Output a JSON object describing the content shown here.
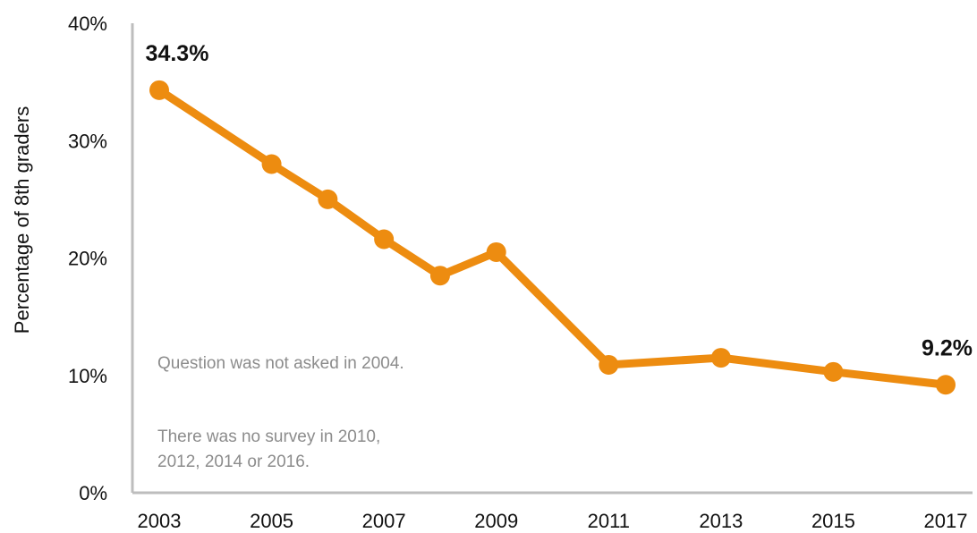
{
  "chart_data": {
    "type": "line",
    "ylabel": "Percentage of 8th graders",
    "xlabel": "",
    "xlim": [
      2003,
      2017
    ],
    "ylim": [
      0,
      40
    ],
    "x_ticks": [
      "2003",
      "2005",
      "2007",
      "2009",
      "2011",
      "2013",
      "2015",
      "2017"
    ],
    "y_ticks": [
      "0%",
      "10%",
      "20%",
      "30%",
      "40%"
    ],
    "color": "#ed8c10",
    "grid": false,
    "series": [
      {
        "x": [
          2003,
          2005,
          2006,
          2007,
          2008,
          2009,
          2011,
          2013,
          2015,
          2017
        ],
        "values": [
          34.3,
          28.0,
          25.0,
          21.6,
          18.5,
          20.5,
          10.9,
          11.5,
          10.3,
          9.2
        ]
      }
    ],
    "data_labels": [
      {
        "x": 2003,
        "text": "34.3%"
      },
      {
        "x": 2017,
        "text": "9.2%"
      }
    ]
  },
  "notes": {
    "note1": "Question was not asked in 2004.",
    "note2": "There was no survey in 2010, 2012, 2014 or 2016."
  }
}
